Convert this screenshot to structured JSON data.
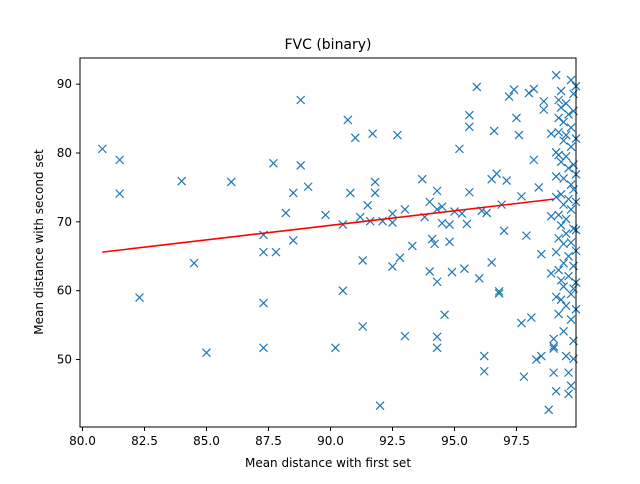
{
  "chart_data": {
    "type": "scatter",
    "title": "FVC (binary)",
    "xlabel": "Mean distance with first set",
    "ylabel": "Mean distance with second set",
    "xlim": [
      79.9,
      99.9
    ],
    "ylim": [
      40.2,
      93.8
    ],
    "xticks": [
      80.0,
      82.5,
      85.0,
      87.5,
      90.0,
      92.5,
      95.0,
      97.5
    ],
    "xtick_labels": [
      "80.0",
      "82.5",
      "85.0",
      "87.5",
      "90.0",
      "92.5",
      "95.0",
      "97.5"
    ],
    "yticks": [
      50,
      60,
      70,
      80,
      90
    ],
    "ytick_labels": [
      "50",
      "60",
      "70",
      "80",
      "90"
    ],
    "grid": false,
    "marker": "x",
    "colors": {
      "points": "#1f77b4",
      "fit_line": "#ff0000"
    },
    "fit_line": {
      "x": [
        80.8,
        99.0
      ],
      "y": [
        65.6,
        73.3
      ]
    },
    "points": [
      [
        80.8,
        80.6
      ],
      [
        81.5,
        79.0
      ],
      [
        81.5,
        74.1
      ],
      [
        82.3,
        59.0
      ],
      [
        84.0,
        75.9
      ],
      [
        84.5,
        64.0
      ],
      [
        85.0,
        51.0
      ],
      [
        86.0,
        75.8
      ],
      [
        87.3,
        68.1
      ],
      [
        87.3,
        65.6
      ],
      [
        87.3,
        58.2
      ],
      [
        87.3,
        51.7
      ],
      [
        87.7,
        78.5
      ],
      [
        87.8,
        65.6
      ],
      [
        88.2,
        71.3
      ],
      [
        88.5,
        74.2
      ],
      [
        88.5,
        67.3
      ],
      [
        88.8,
        87.7
      ],
      [
        88.8,
        78.2
      ],
      [
        89.1,
        75.1
      ],
      [
        89.8,
        71.0
      ],
      [
        90.2,
        51.7
      ],
      [
        90.5,
        69.6
      ],
      [
        90.5,
        60.0
      ],
      [
        90.7,
        84.8
      ],
      [
        90.8,
        74.2
      ],
      [
        91.0,
        82.2
      ],
      [
        91.2,
        70.7
      ],
      [
        91.3,
        64.4
      ],
      [
        91.3,
        54.8
      ],
      [
        91.5,
        72.4
      ],
      [
        91.6,
        70.1
      ],
      [
        91.7,
        82.8
      ],
      [
        91.8,
        75.8
      ],
      [
        91.8,
        74.2
      ],
      [
        92.0,
        43.3
      ],
      [
        92.1,
        70.1
      ],
      [
        92.5,
        71.2
      ],
      [
        92.5,
        69.9
      ],
      [
        92.5,
        63.5
      ],
      [
        92.7,
        82.6
      ],
      [
        92.8,
        64.8
      ],
      [
        93.0,
        71.8
      ],
      [
        93.0,
        53.4
      ],
      [
        93.3,
        66.5
      ],
      [
        93.7,
        76.2
      ],
      [
        93.8,
        70.7
      ],
      [
        94.0,
        72.9
      ],
      [
        94.0,
        62.8
      ],
      [
        94.1,
        67.5
      ],
      [
        94.2,
        66.8
      ],
      [
        94.3,
        74.5
      ],
      [
        94.3,
        71.8
      ],
      [
        94.3,
        61.3
      ],
      [
        94.3,
        53.3
      ],
      [
        94.3,
        51.7
      ],
      [
        94.5,
        72.2
      ],
      [
        94.5,
        69.8
      ],
      [
        94.6,
        56.5
      ],
      [
        94.8,
        69.6
      ],
      [
        94.8,
        67.1
      ],
      [
        94.9,
        62.7
      ],
      [
        95.0,
        71.5
      ],
      [
        95.2,
        80.6
      ],
      [
        95.3,
        71.2
      ],
      [
        95.4,
        63.2
      ],
      [
        95.5,
        69.7
      ],
      [
        95.6,
        85.5
      ],
      [
        95.6,
        83.8
      ],
      [
        95.6,
        74.3
      ],
      [
        95.9,
        89.6
      ],
      [
        96.0,
        61.8
      ],
      [
        96.1,
        71.6
      ],
      [
        96.2,
        50.5
      ],
      [
        96.2,
        48.3
      ],
      [
        96.3,
        71.3
      ],
      [
        96.5,
        76.2
      ],
      [
        96.5,
        64.1
      ],
      [
        96.6,
        83.2
      ],
      [
        96.7,
        77.0
      ],
      [
        96.8,
        59.9
      ],
      [
        96.8,
        59.6
      ],
      [
        96.9,
        72.5
      ],
      [
        97.0,
        68.7
      ],
      [
        97.1,
        76.0
      ],
      [
        97.2,
        88.2
      ],
      [
        97.4,
        89.2
      ],
      [
        97.5,
        85.1
      ],
      [
        97.6,
        82.6
      ],
      [
        97.7,
        73.7
      ],
      [
        97.7,
        55.3
      ],
      [
        97.8,
        47.5
      ],
      [
        97.9,
        68.0
      ],
      [
        98.0,
        88.7
      ],
      [
        98.1,
        56.1
      ],
      [
        98.2,
        89.3
      ],
      [
        98.2,
        79.0
      ],
      [
        98.3,
        50.0
      ],
      [
        98.4,
        75.0
      ],
      [
        98.5,
        65.3
      ],
      [
        98.5,
        50.5
      ],
      [
        98.6,
        87.5
      ],
      [
        98.6,
        86.3
      ],
      [
        98.8,
        42.7
      ],
      [
        98.9,
        82.8
      ],
      [
        98.9,
        70.8
      ],
      [
        98.9,
        62.5
      ],
      [
        99.0,
        53.0
      ],
      [
        99.0,
        51.9
      ],
      [
        99.0,
        51.6
      ],
      [
        99.0,
        48.1
      ],
      [
        99.1,
        91.3
      ],
      [
        99.1,
        80.1
      ],
      [
        99.1,
        76.6
      ],
      [
        99.1,
        73.6
      ],
      [
        99.1,
        65.6
      ],
      [
        99.1,
        59.1
      ],
      [
        99.1,
        45.4
      ],
      [
        99.2,
        87.7
      ],
      [
        99.2,
        85.1
      ],
      [
        99.2,
        83.0
      ],
      [
        99.2,
        79.7
      ],
      [
        99.2,
        71.0
      ],
      [
        99.2,
        67.6
      ],
      [
        99.2,
        63.0
      ],
      [
        99.2,
        56.6
      ],
      [
        99.3,
        89.0
      ],
      [
        99.3,
        86.6
      ],
      [
        99.3,
        78.7
      ],
      [
        99.3,
        74.0
      ],
      [
        99.3,
        69.5
      ],
      [
        99.3,
        61.5
      ],
      [
        99.3,
        58.7
      ],
      [
        99.4,
        84.5
      ],
      [
        99.4,
        81.8
      ],
      [
        99.4,
        76.3
      ],
      [
        99.4,
        72.5
      ],
      [
        99.4,
        66.8
      ],
      [
        99.4,
        64.0
      ],
      [
        99.4,
        60.6
      ],
      [
        99.4,
        54.1
      ],
      [
        99.5,
        87.2
      ],
      [
        99.5,
        82.6
      ],
      [
        99.5,
        79.5
      ],
      [
        99.5,
        70.4
      ],
      [
        99.5,
        68.3
      ],
      [
        99.5,
        57.8
      ],
      [
        99.5,
        50.5
      ],
      [
        99.6,
        85.6
      ],
      [
        99.6,
        77.8
      ],
      [
        99.6,
        73.3
      ],
      [
        99.6,
        65.0
      ],
      [
        99.6,
        62.1
      ],
      [
        99.6,
        48.1
      ],
      [
        99.6,
        45.0
      ],
      [
        99.7,
        90.6
      ],
      [
        99.7,
        83.7
      ],
      [
        99.7,
        80.9
      ],
      [
        99.7,
        75.4
      ],
      [
        99.7,
        71.8
      ],
      [
        99.7,
        67.0
      ],
      [
        99.7,
        59.5
      ],
      [
        99.7,
        55.8
      ],
      [
        99.7,
        46.2
      ],
      [
        99.8,
        88.6
      ],
      [
        99.8,
        86.1
      ],
      [
        99.8,
        78.3
      ],
      [
        99.8,
        74.7
      ],
      [
        99.8,
        69.0
      ],
      [
        99.8,
        63.6
      ],
      [
        99.8,
        60.3
      ],
      [
        99.8,
        52.7
      ],
      [
        99.8,
        50.1
      ],
      [
        99.9,
        89.7
      ],
      [
        99.9,
        82.1
      ],
      [
        99.9,
        76.9
      ],
      [
        99.9,
        72.9
      ],
      [
        99.9,
        68.8
      ],
      [
        99.9,
        65.8
      ],
      [
        99.9,
        61.2
      ],
      [
        99.9,
        57.3
      ]
    ]
  }
}
